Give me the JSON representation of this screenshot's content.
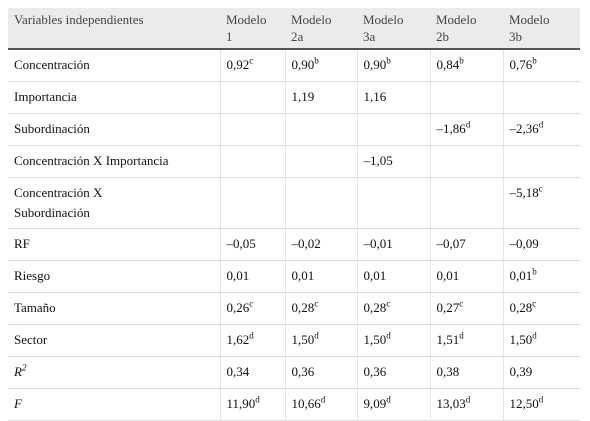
{
  "table": {
    "header": [
      [
        "Variables independientes"
      ],
      [
        "Modelo",
        "1"
      ],
      [
        "Modelo",
        "2a"
      ],
      [
        "Modelo",
        "3a"
      ],
      [
        "Modelo",
        "2b"
      ],
      [
        "Modelo",
        "3b"
      ]
    ],
    "rows": [
      {
        "label": {
          "lines": [
            "Concentración"
          ]
        },
        "cells": [
          {
            "text": "0,92",
            "sup": "c"
          },
          {
            "text": "0,90",
            "sup": "b"
          },
          {
            "text": "0,90",
            "sup": "b"
          },
          {
            "text": "0,84",
            "sup": "b"
          },
          {
            "text": "0,76",
            "sup": "b"
          }
        ]
      },
      {
        "label": {
          "lines": [
            "Importancia"
          ]
        },
        "cells": [
          null,
          {
            "text": "1,19"
          },
          {
            "text": "1,16"
          },
          null,
          null
        ]
      },
      {
        "label": {
          "lines": [
            "Subordinación"
          ]
        },
        "cells": [
          null,
          null,
          null,
          {
            "text": "–1,86",
            "sup": "d"
          },
          {
            "text": "–2,36",
            "sup": "d"
          }
        ]
      },
      {
        "label": {
          "lines": [
            "Concentración X Importancia"
          ]
        },
        "cells": [
          null,
          null,
          {
            "text": "–1,05"
          },
          null,
          null
        ]
      },
      {
        "label": {
          "lines": [
            "Concentración X",
            "Subordinación"
          ]
        },
        "cells": [
          null,
          null,
          null,
          null,
          {
            "text": "–5,18",
            "sup": "c"
          }
        ]
      },
      {
        "label": {
          "lines": [
            "RF"
          ]
        },
        "cells": [
          {
            "text": "–0,05"
          },
          {
            "text": "–0,02"
          },
          {
            "text": "–0,01"
          },
          {
            "text": "–0,07"
          },
          {
            "text": "–0,09"
          }
        ]
      },
      {
        "label": {
          "lines": [
            "Riesgo"
          ]
        },
        "cells": [
          {
            "text": "0,01"
          },
          {
            "text": "0,01"
          },
          {
            "text": "0,01"
          },
          {
            "text": "0,01"
          },
          {
            "text": "0,01",
            "sup": "b"
          }
        ]
      },
      {
        "label": {
          "lines": [
            "Tamaño"
          ]
        },
        "cells": [
          {
            "text": "0,26",
            "sup": "c"
          },
          {
            "text": "0,28",
            "sup": "c"
          },
          {
            "text": "0,28",
            "sup": "c"
          },
          {
            "text": "0,27",
            "sup": "c"
          },
          {
            "text": "0,28",
            "sup": "c"
          }
        ]
      },
      {
        "label": {
          "lines": [
            "Sector"
          ]
        },
        "cells": [
          {
            "text": "1,62",
            "sup": "d"
          },
          {
            "text": "1,50",
            "sup": "d"
          },
          {
            "text": "1,50",
            "sup": "d"
          },
          {
            "text": "1,51",
            "sup": "d"
          },
          {
            "text": "1,50",
            "sup": "d"
          }
        ]
      },
      {
        "label": {
          "lines": [
            "R"
          ],
          "sup": "2",
          "italic": true
        },
        "cells": [
          {
            "text": "0,34"
          },
          {
            "text": "0,36"
          },
          {
            "text": "0,36"
          },
          {
            "text": "0,38"
          },
          {
            "text": "0,39"
          }
        ]
      },
      {
        "label": {
          "lines": [
            "F"
          ],
          "italic": true
        },
        "cells": [
          {
            "text": "11,90",
            "sup": "d"
          },
          {
            "text": "10,66",
            "sup": "d"
          },
          {
            "text": "9,09",
            "sup": "d"
          },
          {
            "text": "13,03",
            "sup": "d"
          },
          {
            "text": "12,50",
            "sup": "d"
          }
        ]
      }
    ]
  }
}
